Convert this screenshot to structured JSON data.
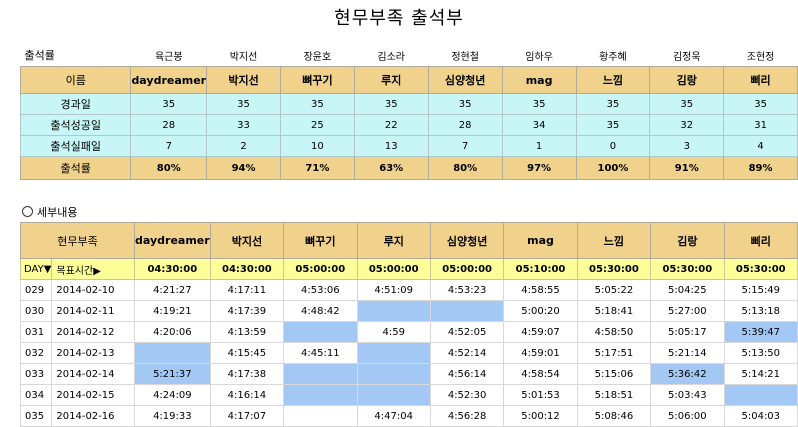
{
  "title": "현무부족 출석부",
  "summary": {
    "label_attendance": "출석률",
    "korean_names": [
      "육근봉",
      "박지선",
      "장윤호",
      "김소라",
      "정현철",
      "임하우",
      "황주혜",
      "김정욱",
      "조현정"
    ],
    "name_header": "이름",
    "nicknames": [
      "daydreamer",
      "박지선",
      "뼈꾸기",
      "루지",
      "심양청년",
      "mag",
      "느낌",
      "김랑",
      "삐리"
    ],
    "rows": [
      {
        "label": "경과일",
        "values": [
          "35",
          "35",
          "35",
          "35",
          "35",
          "35",
          "35",
          "35",
          "35"
        ]
      },
      {
        "label": "출석성공일",
        "values": [
          "28",
          "33",
          "25",
          "22",
          "28",
          "34",
          "35",
          "32",
          "31"
        ]
      },
      {
        "label": "출석실패일",
        "values": [
          "7",
          "2",
          "10",
          "13",
          "7",
          "1",
          "0",
          "3",
          "4"
        ]
      }
    ],
    "rate_label": "출석률",
    "rates": [
      "80%",
      "94%",
      "71%",
      "63%",
      "80%",
      "97%",
      "100%",
      "91%",
      "89%"
    ]
  },
  "detail": {
    "section_label": "세부내용",
    "tribe_header": "현무부족",
    "nicknames": [
      "daydreamer",
      "박지선",
      "뼈꾸기",
      "루지",
      "심양청년",
      "mag",
      "느낌",
      "김랑",
      "삐리"
    ],
    "day_label": "DAY▼",
    "target_label": "목표시간▶",
    "targets": [
      "04:30:00",
      "04:30:00",
      "05:00:00",
      "05:00:00",
      "05:00:00",
      "05:10:00",
      "05:30:00",
      "05:30:00",
      "05:30:00"
    ],
    "rows": [
      {
        "day": "029",
        "date": "2014-02-10",
        "times": [
          "4:21:27",
          "4:17:11",
          "4:53:06",
          "4:51:09",
          "4:53:23",
          "4:58:55",
          "5:05:22",
          "5:04:25",
          "5:15:49"
        ],
        "absent": []
      },
      {
        "day": "030",
        "date": "2014-02-11",
        "times": [
          "4:19:21",
          "4:17:39",
          "4:48:42",
          "",
          "",
          "5:00:20",
          "5:18:41",
          "5:27:00",
          "5:13:18"
        ],
        "absent": [
          3,
          4
        ]
      },
      {
        "day": "031",
        "date": "2014-02-12",
        "times": [
          "4:20:06",
          "4:13:59",
          "",
          "4:59",
          "4:52:05",
          "4:59:07",
          "4:58:50",
          "5:05:17",
          "5:39:47"
        ],
        "absent": [
          2,
          8
        ]
      },
      {
        "day": "032",
        "date": "2014-02-13",
        "times": [
          "",
          "4:15:45",
          "4:45:11",
          "",
          "4:52:14",
          "4:59:01",
          "5:17:51",
          "5:21:14",
          "5:13:50"
        ],
        "absent": [
          0,
          3
        ]
      },
      {
        "day": "033",
        "date": "2014-02-14",
        "times": [
          "5:21:37",
          "4:17:38",
          "",
          "",
          "4:56:14",
          "4:58:54",
          "5:15:06",
          "5:36:42",
          "5:14:21"
        ],
        "absent": [
          0,
          2,
          3,
          7
        ]
      },
      {
        "day": "034",
        "date": "2014-02-15",
        "times": [
          "4:24:09",
          "4:16:14",
          "",
          "",
          "4:52:30",
          "5:01:53",
          "5:18:51",
          "5:03:43",
          ""
        ],
        "absent": [
          2,
          3,
          8
        ]
      },
      {
        "day": "035",
        "date": "2014-02-16",
        "times": [
          "4:19:33",
          "4:17:07",
          "",
          "4:47:04",
          "4:56:28",
          "5:00:12",
          "5:08:46",
          "5:06:00",
          "5:04:03"
        ],
        "absent": []
      }
    ]
  },
  "colors": {
    "header_bg": "#f0d28c",
    "stat_row_bg": "#c8f5f5",
    "target_row_bg": "#ffff9a",
    "absent_cell_bg": "#a4c8f4"
  }
}
